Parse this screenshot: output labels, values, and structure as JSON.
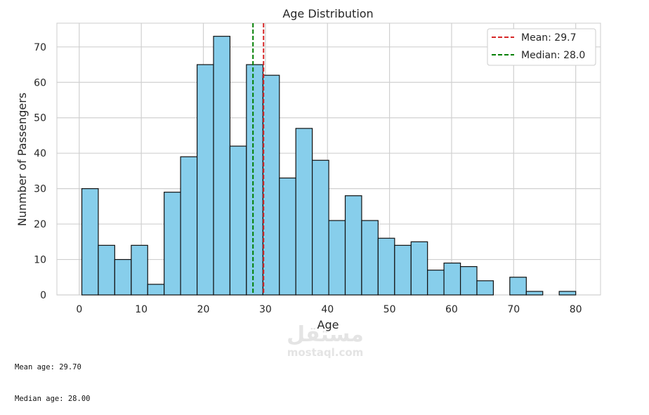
{
  "chart_data": {
    "type": "bar",
    "title": "Age Distribution",
    "xlabel": "Age",
    "ylabel": "Nunmber of Passengers",
    "xlim": [
      -3.6,
      84.0
    ],
    "ylim": [
      0,
      76.7
    ],
    "xticks": [
      0,
      10,
      20,
      30,
      40,
      50,
      60,
      70,
      80
    ],
    "yticks": [
      0,
      10,
      20,
      30,
      40,
      50,
      60,
      70
    ],
    "grid": true,
    "bar_color": "#87CEEB",
    "bar_edge_color": "#111111",
    "bins": [
      {
        "x0": 0.42,
        "x1": 3.07,
        "count": 30
      },
      {
        "x0": 3.07,
        "x1": 5.72,
        "count": 14
      },
      {
        "x0": 5.72,
        "x1": 8.38,
        "count": 10
      },
      {
        "x0": 8.38,
        "x1": 11.03,
        "count": 14
      },
      {
        "x0": 11.03,
        "x1": 13.68,
        "count": 3
      },
      {
        "x0": 13.68,
        "x1": 16.33,
        "count": 29
      },
      {
        "x0": 16.33,
        "x1": 18.99,
        "count": 39
      },
      {
        "x0": 18.99,
        "x1": 21.64,
        "count": 65
      },
      {
        "x0": 21.64,
        "x1": 24.29,
        "count": 73
      },
      {
        "x0": 24.29,
        "x1": 26.94,
        "count": 42
      },
      {
        "x0": 26.94,
        "x1": 29.6,
        "count": 65
      },
      {
        "x0": 29.6,
        "x1": 32.25,
        "count": 62
      },
      {
        "x0": 32.25,
        "x1": 34.9,
        "count": 33
      },
      {
        "x0": 34.9,
        "x1": 37.55,
        "count": 47
      },
      {
        "x0": 37.55,
        "x1": 40.21,
        "count": 38
      },
      {
        "x0": 40.21,
        "x1": 42.86,
        "count": 21
      },
      {
        "x0": 42.86,
        "x1": 45.51,
        "count": 28
      },
      {
        "x0": 45.51,
        "x1": 48.16,
        "count": 21
      },
      {
        "x0": 48.16,
        "x1": 50.82,
        "count": 16
      },
      {
        "x0": 50.82,
        "x1": 53.47,
        "count": 14
      },
      {
        "x0": 53.47,
        "x1": 56.12,
        "count": 15
      },
      {
        "x0": 56.12,
        "x1": 58.77,
        "count": 7
      },
      {
        "x0": 58.77,
        "x1": 61.43,
        "count": 9
      },
      {
        "x0": 61.43,
        "x1": 64.08,
        "count": 8
      },
      {
        "x0": 64.08,
        "x1": 66.73,
        "count": 4
      },
      {
        "x0": 66.73,
        "x1": 69.38,
        "count": 0
      },
      {
        "x0": 69.38,
        "x1": 72.04,
        "count": 5
      },
      {
        "x0": 72.04,
        "x1": 74.69,
        "count": 1
      },
      {
        "x0": 74.69,
        "x1": 77.34,
        "count": 0
      },
      {
        "x0": 77.34,
        "x1": 80.0,
        "count": 1
      }
    ],
    "reference_lines": [
      {
        "name": "Mean: 29.7",
        "value": 29.7,
        "color": "#d62728",
        "style": "dashed"
      },
      {
        "name": "Median: 28.0",
        "value": 28.0,
        "color": "#008000",
        "style": "dashed"
      }
    ],
    "legend_position": "top-right"
  },
  "stats": {
    "mean_line": "Mean age: 29.70",
    "median_line": "Median age: 28.00"
  },
  "watermark": {
    "arabic": "مستقل",
    "latin": "mostaql.com"
  }
}
